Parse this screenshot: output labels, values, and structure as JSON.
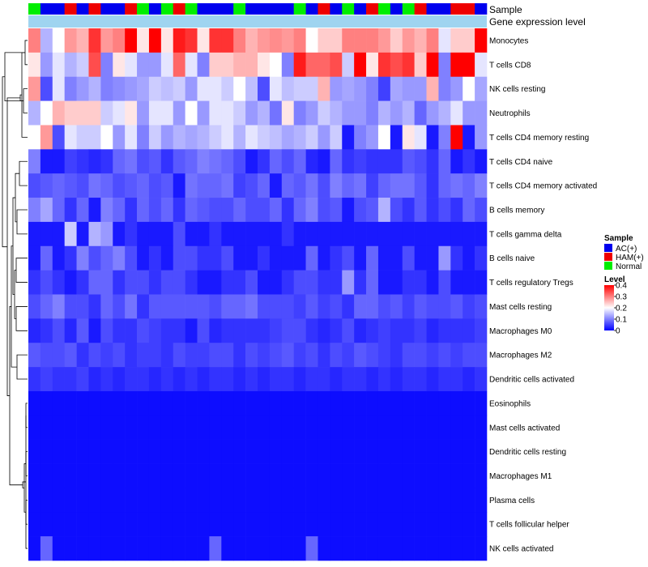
{
  "chart_data": {
    "type": "heatmap",
    "title": "",
    "band_labels": {
      "sample": "Sample",
      "gene": "Gene expression level"
    },
    "rows": [
      "Monocytes",
      "T cells CD8",
      "NK cells resting",
      "Neutrophils",
      "T cells CD4 memory resting",
      "T cells CD4 naive",
      "T cells CD4 memory activated",
      "B cells memory",
      "T cells gamma delta",
      "B cells naive",
      "T cells regulatory  Tregs",
      "Mast cells resting",
      "Macrophages M0",
      "Macrophages M2",
      "Dendritic cells activated",
      "Eosinophils",
      "Mast cells activated",
      "Dendritic cells resting",
      "Macrophages M1",
      "Plasma cells",
      "T cells follicular helper",
      "NK cells activated"
    ],
    "samples": [
      "N",
      "A",
      "A",
      "H",
      "A",
      "H",
      "A",
      "A",
      "H",
      "N",
      "A",
      "N",
      "H",
      "N",
      "A",
      "A",
      "A",
      "N",
      "A",
      "A",
      "A",
      "A",
      "N",
      "A",
      "H",
      "A",
      "N",
      "A",
      "H",
      "N",
      "A",
      "N",
      "H",
      "A",
      "A",
      "H",
      "H",
      "A"
    ],
    "sample_colors": {
      "A": "#0000ee",
      "H": "#ee0000",
      "N": "#00ee00"
    },
    "gene_band_color": "#9fd4f0",
    "values": [
      [
        0.3,
        0.14,
        0.2,
        0.28,
        0.26,
        0.36,
        0.28,
        0.3,
        0.4,
        0.22,
        0.4,
        0.22,
        0.38,
        0.36,
        0.22,
        0.36,
        0.36,
        0.3,
        0.26,
        0.28,
        0.29,
        0.28,
        0.3,
        0.2,
        0.24,
        0.24,
        0.3,
        0.3,
        0.3,
        0.28,
        0.24,
        0.28,
        0.26,
        0.3,
        0.18,
        0.24,
        0.24,
        0.4
      ],
      [
        0.22,
        0.12,
        0.18,
        0.14,
        0.16,
        0.34,
        0.1,
        0.22,
        0.18,
        0.12,
        0.12,
        0.18,
        0.32,
        0.18,
        0.1,
        0.24,
        0.24,
        0.26,
        0.26,
        0.22,
        0.2,
        0.1,
        0.38,
        0.32,
        0.32,
        0.34,
        0.16,
        0.4,
        0.22,
        0.36,
        0.34,
        0.36,
        0.24,
        0.4,
        0.1,
        0.42,
        0.42,
        0.18
      ],
      [
        0.28,
        0.06,
        0.18,
        0.1,
        0.12,
        0.14,
        0.1,
        0.11,
        0.12,
        0.13,
        0.16,
        0.15,
        0.16,
        0.12,
        0.18,
        0.18,
        0.16,
        0.2,
        0.15,
        0.06,
        0.18,
        0.15,
        0.16,
        0.16,
        0.26,
        0.12,
        0.13,
        0.12,
        0.1,
        0.05,
        0.13,
        0.12,
        0.12,
        0.26,
        0.1,
        0.12,
        0.2,
        0.13
      ],
      [
        0.14,
        0.2,
        0.26,
        0.24,
        0.24,
        0.24,
        0.16,
        0.18,
        0.22,
        0.12,
        0.18,
        0.18,
        0.12,
        0.2,
        0.12,
        0.18,
        0.18,
        0.16,
        0.12,
        0.14,
        0.09,
        0.22,
        0.1,
        0.12,
        0.16,
        0.14,
        0.12,
        0.12,
        0.1,
        0.14,
        0.12,
        0.14,
        0.08,
        0.12,
        0.14,
        0.18,
        0.12,
        0.12
      ],
      [
        0.2,
        0.28,
        0.06,
        0.18,
        0.16,
        0.16,
        0.2,
        0.12,
        0.18,
        0.1,
        0.16,
        0.12,
        0.14,
        0.13,
        0.14,
        0.16,
        0.18,
        0.14,
        0.18,
        0.16,
        0.15,
        0.13,
        0.14,
        0.16,
        0.12,
        0.16,
        0.02,
        0.1,
        0.12,
        0.2,
        0.02,
        0.22,
        0.18,
        0.02,
        0.1,
        0.4,
        0.02,
        0.12
      ],
      [
        0.1,
        0.02,
        0.02,
        0.05,
        0.04,
        0.03,
        0.04,
        0.08,
        0.09,
        0.06,
        0.07,
        0.04,
        0.07,
        0.08,
        0.1,
        0.09,
        0.08,
        0.06,
        0.02,
        0.04,
        0.08,
        0.06,
        0.08,
        0.03,
        0.02,
        0.08,
        0.04,
        0.05,
        0.04,
        0.04,
        0.04,
        0.07,
        0.06,
        0.04,
        0.08,
        0.02,
        0.04,
        0.02
      ],
      [
        0.06,
        0.07,
        0.08,
        0.07,
        0.06,
        0.09,
        0.08,
        0.06,
        0.07,
        0.08,
        0.06,
        0.07,
        0.02,
        0.09,
        0.08,
        0.08,
        0.09,
        0.05,
        0.06,
        0.08,
        0.02,
        0.08,
        0.07,
        0.09,
        0.06,
        0.1,
        0.08,
        0.09,
        0.05,
        0.08,
        0.09,
        0.09,
        0.07,
        0.04,
        0.08,
        0.09,
        0.08,
        0.1
      ],
      [
        0.1,
        0.13,
        0.08,
        0.04,
        0.08,
        0.02,
        0.1,
        0.08,
        0.04,
        0.08,
        0.06,
        0.08,
        0.04,
        0.08,
        0.07,
        0.06,
        0.06,
        0.08,
        0.06,
        0.06,
        0.08,
        0.04,
        0.08,
        0.1,
        0.06,
        0.07,
        0.02,
        0.06,
        0.07,
        0.14,
        0.06,
        0.04,
        0.07,
        0.04,
        0.06,
        0.04,
        0.08,
        0.06
      ],
      [
        0.02,
        0.02,
        0.02,
        0.16,
        0.02,
        0.14,
        0.12,
        0.02,
        0.04,
        0.02,
        0.02,
        0.02,
        0.06,
        0.02,
        0.02,
        0.04,
        0.02,
        0.02,
        0.02,
        0.02,
        0.02,
        0.04,
        0.02,
        0.02,
        0.02,
        0.02,
        0.02,
        0.02,
        0.02,
        0.02,
        0.02,
        0.02,
        0.02,
        0.02,
        0.02,
        0.02,
        0.02,
        0.02
      ],
      [
        0.02,
        0.08,
        0.02,
        0.04,
        0.1,
        0.06,
        0.08,
        0.1,
        0.06,
        0.02,
        0.04,
        0.02,
        0.06,
        0.06,
        0.04,
        0.04,
        0.06,
        0.02,
        0.02,
        0.04,
        0.02,
        0.02,
        0.02,
        0.08,
        0.02,
        0.04,
        0.06,
        0.02,
        0.08,
        0.02,
        0.02,
        0.06,
        0.02,
        0.02,
        0.12,
        0.04,
        0.02,
        0.04
      ],
      [
        0.04,
        0.06,
        0.04,
        0.02,
        0.04,
        0.08,
        0.08,
        0.04,
        0.06,
        0.06,
        0.04,
        0.06,
        0.06,
        0.04,
        0.02,
        0.02,
        0.04,
        0.04,
        0.06,
        0.02,
        0.02,
        0.04,
        0.06,
        0.06,
        0.04,
        0.04,
        0.12,
        0.04,
        0.08,
        0.02,
        0.02,
        0.04,
        0.04,
        0.02,
        0.06,
        0.02,
        0.02,
        0.02
      ],
      [
        0.06,
        0.08,
        0.1,
        0.06,
        0.06,
        0.04,
        0.08,
        0.06,
        0.09,
        0.04,
        0.07,
        0.07,
        0.07,
        0.07,
        0.07,
        0.06,
        0.08,
        0.08,
        0.09,
        0.06,
        0.06,
        0.06,
        0.05,
        0.07,
        0.05,
        0.06,
        0.04,
        0.08,
        0.08,
        0.06,
        0.07,
        0.05,
        0.07,
        0.06,
        0.06,
        0.07,
        0.05,
        0.06
      ],
      [
        0.03,
        0.04,
        0.06,
        0.03,
        0.07,
        0.02,
        0.06,
        0.04,
        0.04,
        0.06,
        0.05,
        0.04,
        0.04,
        0.02,
        0.06,
        0.03,
        0.04,
        0.04,
        0.04,
        0.04,
        0.05,
        0.06,
        0.06,
        0.04,
        0.03,
        0.04,
        0.06,
        0.03,
        0.04,
        0.05,
        0.04,
        0.04,
        0.05,
        0.03,
        0.04,
        0.04,
        0.04,
        0.05
      ],
      [
        0.07,
        0.06,
        0.06,
        0.07,
        0.04,
        0.06,
        0.05,
        0.06,
        0.04,
        0.05,
        0.05,
        0.04,
        0.06,
        0.05,
        0.05,
        0.06,
        0.06,
        0.04,
        0.06,
        0.05,
        0.06,
        0.07,
        0.05,
        0.06,
        0.04,
        0.06,
        0.05,
        0.07,
        0.06,
        0.05,
        0.04,
        0.06,
        0.06,
        0.05,
        0.06,
        0.05,
        0.06,
        0.06
      ],
      [
        0.04,
        0.05,
        0.04,
        0.04,
        0.05,
        0.03,
        0.04,
        0.03,
        0.04,
        0.04,
        0.03,
        0.04,
        0.03,
        0.04,
        0.03,
        0.04,
        0.04,
        0.03,
        0.04,
        0.03,
        0.04,
        0.04,
        0.03,
        0.04,
        0.04,
        0.03,
        0.04,
        0.04,
        0.03,
        0.04,
        0.03,
        0.04,
        0.04,
        0.03,
        0.04,
        0.04,
        0.03,
        0.04
      ],
      [
        0.01,
        0.01,
        0.01,
        0.01,
        0.01,
        0.01,
        0.01,
        0.01,
        0.01,
        0.01,
        0.01,
        0.01,
        0.01,
        0.01,
        0.01,
        0.01,
        0.01,
        0.01,
        0.01,
        0.01,
        0.01,
        0.01,
        0.01,
        0.01,
        0.01,
        0.01,
        0.01,
        0.01,
        0.01,
        0.01,
        0.01,
        0.01,
        0.01,
        0.01,
        0.01,
        0.01,
        0.01,
        0.01
      ],
      [
        0.01,
        0.01,
        0.01,
        0.01,
        0.01,
        0.01,
        0.01,
        0.01,
        0.01,
        0.01,
        0.01,
        0.01,
        0.01,
        0.01,
        0.01,
        0.01,
        0.01,
        0.01,
        0.01,
        0.01,
        0.01,
        0.01,
        0.01,
        0.01,
        0.01,
        0.01,
        0.01,
        0.01,
        0.01,
        0.01,
        0.01,
        0.01,
        0.01,
        0.01,
        0.01,
        0.01,
        0.01,
        0.01
      ],
      [
        0.01,
        0.01,
        0.01,
        0.01,
        0.01,
        0.01,
        0.01,
        0.01,
        0.01,
        0.01,
        0.01,
        0.01,
        0.01,
        0.01,
        0.01,
        0.01,
        0.01,
        0.01,
        0.01,
        0.01,
        0.01,
        0.01,
        0.01,
        0.01,
        0.01,
        0.01,
        0.01,
        0.01,
        0.01,
        0.01,
        0.01,
        0.01,
        0.01,
        0.01,
        0.01,
        0.01,
        0.01,
        0.01
      ],
      [
        0.01,
        0.01,
        0.01,
        0.01,
        0.01,
        0.01,
        0.01,
        0.01,
        0.01,
        0.01,
        0.01,
        0.01,
        0.01,
        0.01,
        0.01,
        0.01,
        0.01,
        0.01,
        0.01,
        0.01,
        0.01,
        0.01,
        0.01,
        0.01,
        0.01,
        0.01,
        0.01,
        0.01,
        0.01,
        0.01,
        0.01,
        0.01,
        0.01,
        0.01,
        0.01,
        0.01,
        0.01,
        0.01
      ],
      [
        0.01,
        0.01,
        0.01,
        0.01,
        0.01,
        0.01,
        0.01,
        0.01,
        0.01,
        0.01,
        0.01,
        0.01,
        0.01,
        0.01,
        0.01,
        0.01,
        0.01,
        0.01,
        0.01,
        0.01,
        0.01,
        0.01,
        0.01,
        0.01,
        0.01,
        0.01,
        0.01,
        0.01,
        0.01,
        0.01,
        0.01,
        0.01,
        0.01,
        0.01,
        0.01,
        0.01,
        0.01,
        0.01
      ],
      [
        0.01,
        0.01,
        0.01,
        0.01,
        0.01,
        0.01,
        0.01,
        0.01,
        0.01,
        0.01,
        0.01,
        0.01,
        0.01,
        0.01,
        0.01,
        0.01,
        0.01,
        0.01,
        0.01,
        0.01,
        0.01,
        0.01,
        0.01,
        0.01,
        0.01,
        0.01,
        0.01,
        0.01,
        0.01,
        0.01,
        0.01,
        0.01,
        0.01,
        0.01,
        0.01,
        0.01,
        0.01,
        0.01
      ],
      [
        0.01,
        0.08,
        0.01,
        0.01,
        0.01,
        0.01,
        0.01,
        0.01,
        0.01,
        0.01,
        0.01,
        0.01,
        0.01,
        0.01,
        0.01,
        0.08,
        0.01,
        0.01,
        0.01,
        0.01,
        0.01,
        0.01,
        0.01,
        0.08,
        0.01,
        0.01,
        0.01,
        0.01,
        0.01,
        0.01,
        0.01,
        0.01,
        0.01,
        0.01,
        0.01,
        0.01,
        0.01,
        0.01
      ]
    ],
    "color_scale": {
      "min": 0,
      "max": 0.4,
      "low": "#0000ff",
      "mid": "#ffffff",
      "high": "#ff0000",
      "mid_value": 0.2
    },
    "legend": {
      "sample_title": "Sample",
      "sample_items": [
        {
          "key": "A",
          "label": "AC(+)",
          "color": "#0000ee"
        },
        {
          "key": "H",
          "label": "HAM(+)",
          "color": "#ee0000"
        },
        {
          "key": "N",
          "label": "Normal",
          "color": "#00ee00"
        }
      ],
      "level_title": "Level",
      "level_ticks": [
        "0.4",
        "0.3",
        "0.2",
        "0.1",
        "0"
      ],
      "level_tick_values": [
        0.4,
        0.3,
        0.2,
        0.1,
        0
      ]
    }
  }
}
